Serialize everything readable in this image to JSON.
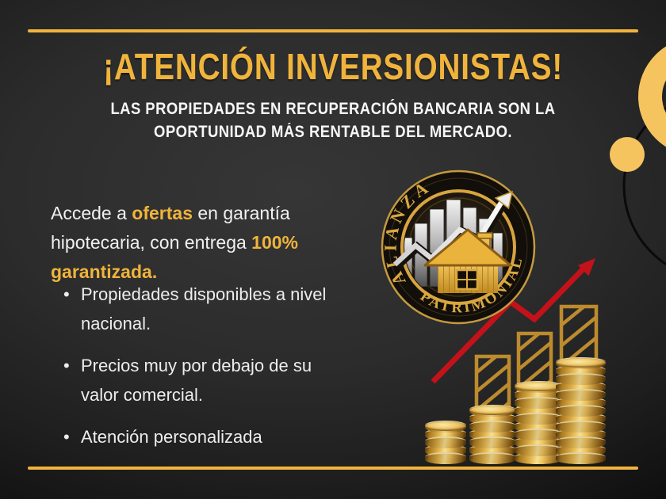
{
  "theme": {
    "gold": "#f0b43c",
    "gold_deep": "#bd8b2e",
    "gold_pale": "#f6c45f",
    "red": "#c4121a",
    "text": "#f1f1f1"
  },
  "header": {
    "title": "¡ATENCIÓN INVERSIONISTAS!",
    "subtitle_lines": [
      "LAS PROPIEDADES EN RECUPERACIÓN BANCARIA SON LA",
      "OPORTUNIDAD MÁS RENTABLE DEL MERCADO."
    ]
  },
  "intro": {
    "parts": [
      {
        "text": "Accede a ",
        "highlight": false
      },
      {
        "text": "ofertas",
        "highlight": true
      },
      {
        "text": " en garantía hipotecaria, con entrega ",
        "highlight": false
      },
      {
        "text": "100% garantizada.",
        "highlight": true
      }
    ]
  },
  "bullets": [
    "Propiedades disponibles a nivel nacional.",
    "Precios muy por debajo de su valor comercial.",
    "Atención personalizada"
  ],
  "logo": {
    "arc_top": "ALIANZA",
    "arc_bottom": "PATRIMONIAL"
  }
}
